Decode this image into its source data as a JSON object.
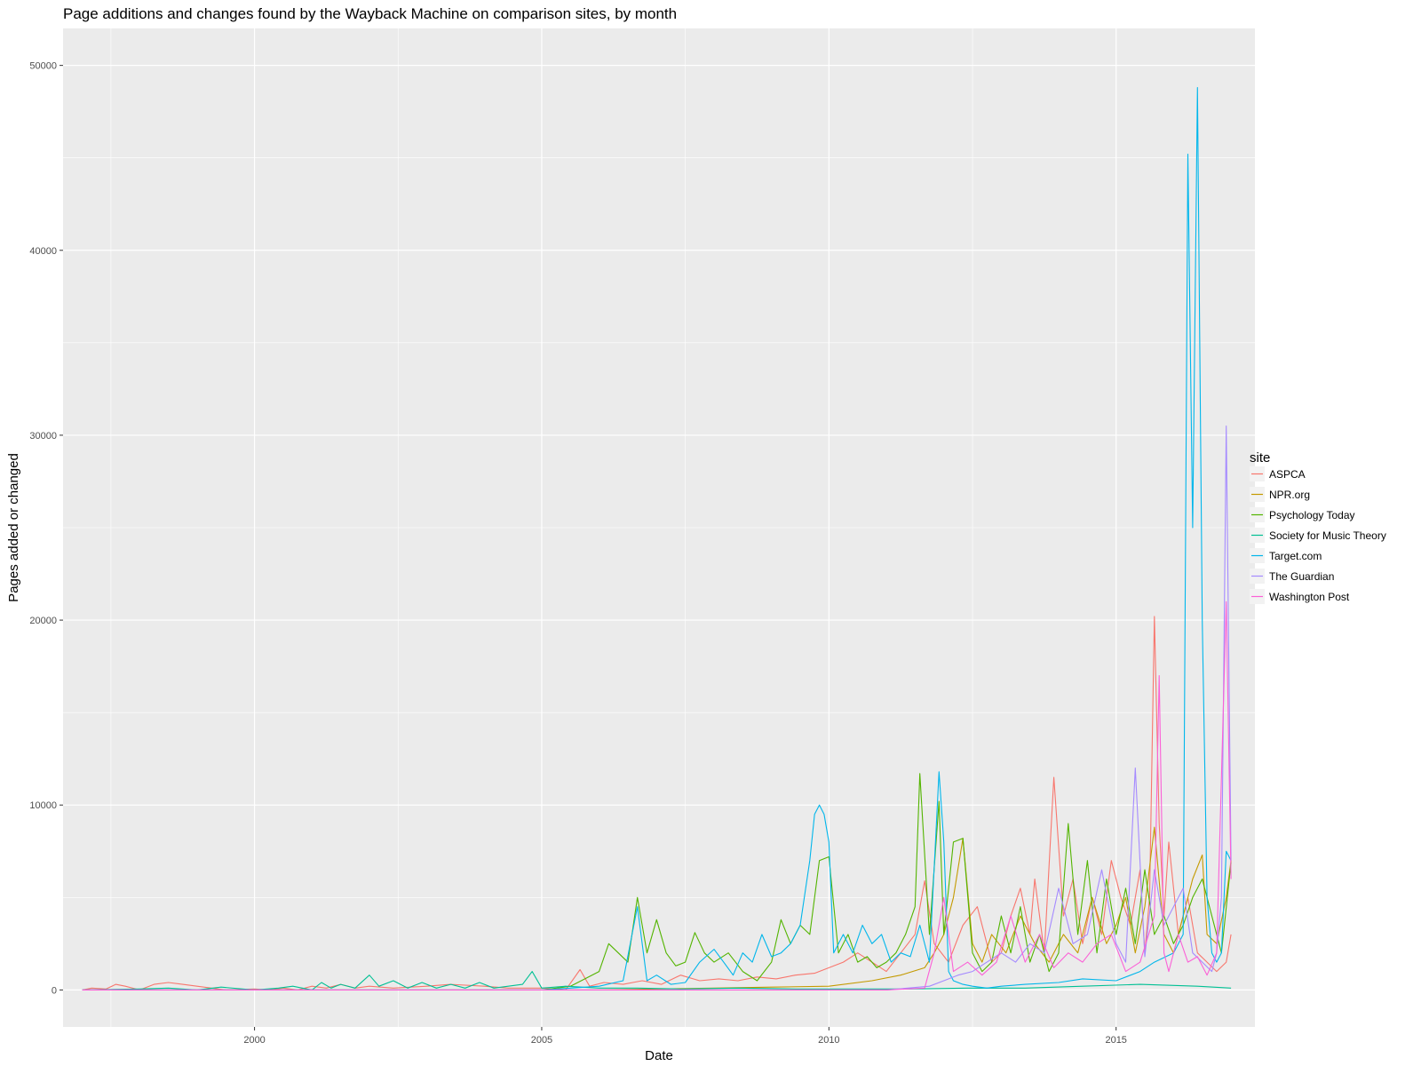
{
  "chart_data": {
    "type": "line",
    "title": "Page additions and changes found by the Wayback Machine on comparison sites, by month",
    "xlabel": "Date",
    "ylabel": "Pages added or changed",
    "x_tick_labels": [
      "2000",
      "2005",
      "2010",
      "2015"
    ],
    "y_tick_labels": [
      "0",
      "10000",
      "20000",
      "30000",
      "40000",
      "50000"
    ],
    "xlim": [
      "1996-09",
      "2017-06"
    ],
    "ylim": [
      -2000,
      52000
    ],
    "grid": true,
    "legend_title": "site",
    "legend_position": "right",
    "series": [
      {
        "name": "ASPCA",
        "color": "#F8766D",
        "x": [
          "1997-01",
          "1997-03",
          "1997-06",
          "1997-08",
          "1997-10",
          "1998-01",
          "1998-04",
          "1998-07",
          "1998-10",
          "1999-01",
          "1999-04",
          "1999-07",
          "2000-01",
          "2000-04",
          "2000-07",
          "2000-10",
          "2001-01",
          "2001-04",
          "2001-07",
          "2001-10",
          "2002-01",
          "2002-06",
          "2003-01",
          "2003-06",
          "2004-01",
          "2004-06",
          "2005-01",
          "2005-06",
          "2005-09",
          "2005-11",
          "2006-02",
          "2006-06",
          "2006-10",
          "2007-02",
          "2007-06",
          "2007-10",
          "2008-02",
          "2008-06",
          "2008-10",
          "2009-02",
          "2009-06",
          "2009-10",
          "2010-01",
          "2010-04",
          "2010-07",
          "2010-10",
          "2011-01",
          "2011-04",
          "2011-07",
          "2011-09",
          "2011-11",
          "2012-02",
          "2012-05",
          "2012-08",
          "2012-11",
          "2013-01",
          "2013-03",
          "2013-05",
          "2013-07",
          "2013-08",
          "2013-10",
          "2013-12",
          "2014-02",
          "2014-04",
          "2014-06",
          "2014-08",
          "2014-10",
          "2014-12",
          "2015-02",
          "2015-04",
          "2015-06",
          "2015-07",
          "2015-08",
          "2015-09",
          "2015-10",
          "2015-11",
          "2015-12",
          "2016-02",
          "2016-04",
          "2016-06",
          "2016-08",
          "2016-10",
          "2016-12",
          "2017-01"
        ],
        "y": [
          0,
          100,
          50,
          300,
          200,
          0,
          300,
          400,
          300,
          200,
          100,
          0,
          50,
          0,
          100,
          0,
          200,
          100,
          300,
          100,
          200,
          100,
          200,
          300,
          200,
          100,
          100,
          0,
          1100,
          200,
          400,
          300,
          500,
          300,
          800,
          500,
          600,
          500,
          700,
          600,
          800,
          900,
          1200,
          1500,
          2000,
          1500,
          1000,
          2000,
          3000,
          5900,
          2500,
          1500,
          3500,
          4500,
          1500,
          2000,
          4000,
          5500,
          3000,
          6000,
          2000,
          11500,
          4000,
          6000,
          2500,
          5000,
          3000,
          7000,
          5000,
          3500,
          6500,
          2000,
          5000,
          20200,
          9000,
          4000,
          8000,
          3000,
          5000,
          2000,
          1500,
          1000,
          1500,
          3000
        ]
      },
      {
        "name": "NPR.org",
        "color": "#C49A00",
        "x": [
          "1997-01",
          "1998-01",
          "1999-01",
          "2000-01",
          "2001-01",
          "2002-01",
          "2003-01",
          "2004-01",
          "2005-01",
          "2006-01",
          "2007-01",
          "2008-01",
          "2009-01",
          "2010-01",
          "2010-10",
          "2011-04",
          "2011-09",
          "2011-11",
          "2012-01",
          "2012-03",
          "2012-05",
          "2012-07",
          "2012-09",
          "2012-11",
          "2013-02",
          "2013-05",
          "2013-08",
          "2013-11",
          "2014-02",
          "2014-05",
          "2014-08",
          "2014-11",
          "2015-01",
          "2015-03",
          "2015-05",
          "2015-07",
          "2015-09",
          "2015-11",
          "2016-01",
          "2016-03",
          "2016-05",
          "2016-07",
          "2016-08",
          "2016-10",
          "2016-12",
          "2017-01"
        ],
        "y": [
          0,
          0,
          0,
          0,
          0,
          0,
          0,
          0,
          0,
          0,
          50,
          100,
          150,
          200,
          500,
          800,
          1200,
          2000,
          3000,
          5000,
          8200,
          2500,
          1500,
          3000,
          2000,
          4000,
          2500,
          1500,
          3000,
          2000,
          5000,
          2500,
          3500,
          5000,
          2000,
          4500,
          8800,
          3000,
          2000,
          4000,
          6000,
          7300,
          3000,
          2500,
          5000,
          7000
        ]
      },
      {
        "name": "Psychology Today",
        "color": "#53B400",
        "x": [
          "1997-01",
          "1999-01",
          "2001-01",
          "2003-01",
          "2005-01",
          "2005-07",
          "2006-01",
          "2006-03",
          "2006-05",
          "2006-07",
          "2006-09",
          "2006-11",
          "2007-01",
          "2007-03",
          "2007-05",
          "2007-07",
          "2007-09",
          "2007-11",
          "2008-01",
          "2008-04",
          "2008-07",
          "2008-10",
          "2009-01",
          "2009-03",
          "2009-05",
          "2009-07",
          "2009-09",
          "2009-11",
          "2010-01",
          "2010-03",
          "2010-05",
          "2010-07",
          "2010-09",
          "2010-11",
          "2011-01",
          "2011-03",
          "2011-05",
          "2011-07",
          "2011-08",
          "2011-10",
          "2011-12",
          "2012-01",
          "2012-03",
          "2012-05",
          "2012-07",
          "2012-09",
          "2012-11",
          "2013-01",
          "2013-03",
          "2013-05",
          "2013-07",
          "2013-09",
          "2013-11",
          "2014-01",
          "2014-03",
          "2014-05",
          "2014-07",
          "2014-09",
          "2014-11",
          "2015-01",
          "2015-03",
          "2015-05",
          "2015-07",
          "2015-09",
          "2015-11",
          "2016-01",
          "2016-03",
          "2016-05",
          "2016-07",
          "2016-09",
          "2016-11",
          "2017-01"
        ],
        "y": [
          0,
          0,
          0,
          0,
          0,
          200,
          1000,
          2500,
          2000,
          1500,
          5000,
          2000,
          3800,
          2000,
          1300,
          1500,
          3100,
          2000,
          1500,
          2000,
          1000,
          500,
          1500,
          3800,
          2500,
          3500,
          3000,
          7000,
          7200,
          2000,
          3000,
          1500,
          1800,
          1200,
          1500,
          2000,
          3000,
          4500,
          11700,
          3000,
          10200,
          3000,
          8000,
          8200,
          2000,
          1000,
          1500,
          4000,
          2000,
          4500,
          1500,
          3000,
          1000,
          2000,
          9000,
          3000,
          7000,
          2000,
          6000,
          3000,
          5500,
          2500,
          6500,
          3000,
          4000,
          2500,
          3500,
          5000,
          6000,
          4000,
          2000,
          6900
        ]
      },
      {
        "name": "Society for Music Theory",
        "color": "#00C094",
        "x": [
          "1997-01",
          "1998-01",
          "1998-07",
          "1999-01",
          "1999-06",
          "2000-01",
          "2000-06",
          "2000-09",
          "2001-01",
          "2001-03",
          "2001-05",
          "2001-07",
          "2001-10",
          "2002-01",
          "2002-03",
          "2002-06",
          "2002-09",
          "2002-12",
          "2003-03",
          "2003-06",
          "2003-09",
          "2003-12",
          "2004-03",
          "2004-06",
          "2004-09",
          "2004-11",
          "2005-01",
          "2005-06",
          "2006-01",
          "2006-09",
          "2007-06",
          "2008-06",
          "2009-06",
          "2010-06",
          "2011-06",
          "2012-06",
          "2013-06",
          "2014-06",
          "2015-06",
          "2016-06",
          "2017-01"
        ],
        "y": [
          0,
          50,
          100,
          0,
          150,
          0,
          100,
          200,
          0,
          400,
          100,
          300,
          100,
          800,
          200,
          500,
          100,
          400,
          100,
          300,
          100,
          400,
          100,
          200,
          300,
          1000,
          100,
          200,
          100,
          100,
          50,
          100,
          50,
          50,
          50,
          100,
          100,
          200,
          300,
          200,
          100
        ]
      },
      {
        "name": "Target.com",
        "color": "#00B6EB",
        "x": [
          "1997-01",
          "2000-01",
          "2003-01",
          "2005-01",
          "2006-01",
          "2006-06",
          "2006-09",
          "2006-11",
          "2007-01",
          "2007-04",
          "2007-07",
          "2007-10",
          "2008-01",
          "2008-03",
          "2008-05",
          "2008-07",
          "2008-09",
          "2008-11",
          "2009-01",
          "2009-03",
          "2009-05",
          "2009-07",
          "2009-09",
          "2009-10",
          "2009-11",
          "2009-12",
          "2010-01",
          "2010-02",
          "2010-04",
          "2010-06",
          "2010-08",
          "2010-10",
          "2010-12",
          "2011-02",
          "2011-04",
          "2011-06",
          "2011-08",
          "2011-10",
          "2011-12",
          "2012-01",
          "2012-02",
          "2012-03",
          "2012-05",
          "2012-07",
          "2012-10",
          "2013-01",
          "2013-06",
          "2014-01",
          "2014-06",
          "2015-01",
          "2015-06",
          "2015-09",
          "2016-01",
          "2016-03",
          "2016-04",
          "2016-05",
          "2016-06",
          "2016-07",
          "2016-08",
          "2016-09",
          "2016-10",
          "2016-11",
          "2016-12",
          "2017-01"
        ],
        "y": [
          0,
          0,
          0,
          0,
          200,
          500,
          4500,
          500,
          800,
          300,
          400,
          1500,
          2200,
          1500,
          800,
          2000,
          1500,
          3000,
          1800,
          2000,
          2500,
          3500,
          7000,
          9500,
          10000,
          9500,
          8000,
          2000,
          3000,
          2000,
          3500,
          2500,
          3000,
          1500,
          2000,
          1800,
          3500,
          1500,
          11800,
          8000,
          1000,
          500,
          300,
          200,
          100,
          200,
          300,
          400,
          600,
          500,
          1000,
          1500,
          2000,
          3000,
          45200,
          25000,
          48800,
          20000,
          5000,
          2000,
          1500,
          2000,
          7500,
          7000
        ]
      },
      {
        "name": "The Guardian",
        "color": "#A58AFF",
        "x": [
          "1997-01",
          "2000-01",
          "2005-01",
          "2008-01",
          "2010-01",
          "2011-01",
          "2011-10",
          "2012-01",
          "2012-04",
          "2012-07",
          "2012-10",
          "2013-01",
          "2013-04",
          "2013-07",
          "2013-10",
          "2014-01",
          "2014-04",
          "2014-07",
          "2014-10",
          "2015-01",
          "2015-03",
          "2015-05",
          "2015-07",
          "2015-09",
          "2015-11",
          "2016-01",
          "2016-03",
          "2016-05",
          "2016-07",
          "2016-09",
          "2016-10",
          "2016-11",
          "2016-12",
          "2017-01"
        ],
        "y": [
          0,
          0,
          0,
          0,
          0,
          0,
          200,
          500,
          800,
          1000,
          1500,
          2000,
          1500,
          2500,
          2000,
          5500,
          2500,
          3000,
          6500,
          2500,
          1500,
          12000,
          1800,
          6500,
          3500,
          4500,
          5500,
          2000,
          1500,
          1000,
          2000,
          5000,
          30500,
          7000
        ]
      },
      {
        "name": "Washington Post",
        "color": "#FB61D7",
        "x": [
          "1997-01",
          "2000-01",
          "2005-01",
          "2008-01",
          "2010-01",
          "2011-01",
          "2011-09",
          "2011-11",
          "2012-01",
          "2012-03",
          "2012-06",
          "2012-09",
          "2012-12",
          "2013-03",
          "2013-06",
          "2013-09",
          "2013-12",
          "2014-03",
          "2014-06",
          "2014-09",
          "2014-12",
          "2015-03",
          "2015-06",
          "2015-09",
          "2015-10",
          "2015-11",
          "2015-12",
          "2016-02",
          "2016-04",
          "2016-06",
          "2016-08",
          "2016-10",
          "2016-12",
          "2017-01"
        ],
        "y": [
          0,
          0,
          0,
          0,
          0,
          0,
          100,
          2000,
          5000,
          1000,
          1500,
          800,
          1500,
          4000,
          1500,
          3000,
          1200,
          2000,
          1500,
          2500,
          3000,
          1000,
          1500,
          4000,
          17000,
          2000,
          1000,
          3000,
          1500,
          1800,
          800,
          2000,
          21000,
          6000
        ]
      }
    ]
  }
}
